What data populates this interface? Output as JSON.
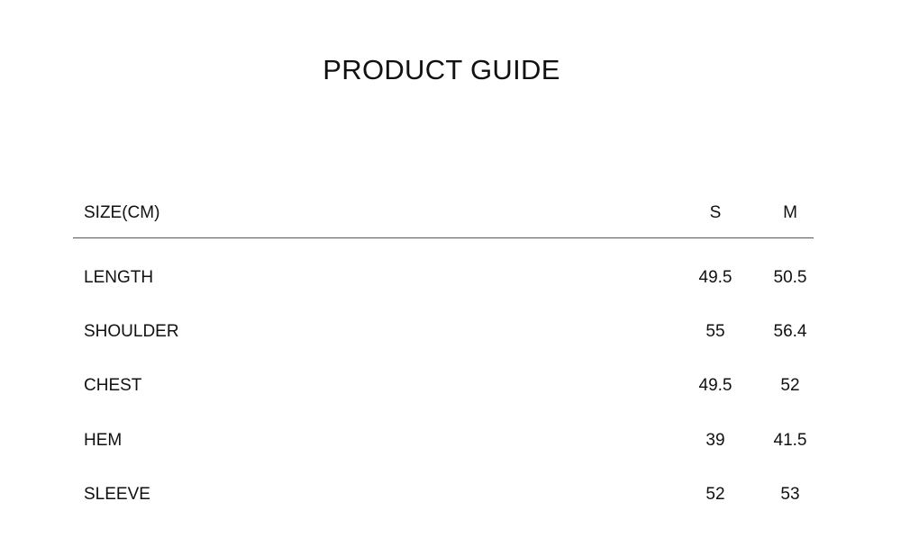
{
  "title": "PRODUCT GUIDE",
  "table": {
    "header": {
      "label": "SIZE(CM)",
      "sizes": [
        "S",
        "M"
      ]
    },
    "rows": [
      {
        "label": "LENGTH",
        "values": [
          "49.5",
          "50.5"
        ]
      },
      {
        "label": "SHOULDER",
        "values": [
          "55",
          "56.4"
        ]
      },
      {
        "label": "CHEST",
        "values": [
          "49.5",
          "52"
        ]
      },
      {
        "label": "HEM",
        "values": [
          "39",
          "41.5"
        ]
      },
      {
        "label": "SLEEVE",
        "values": [
          "52",
          "53"
        ]
      }
    ]
  }
}
